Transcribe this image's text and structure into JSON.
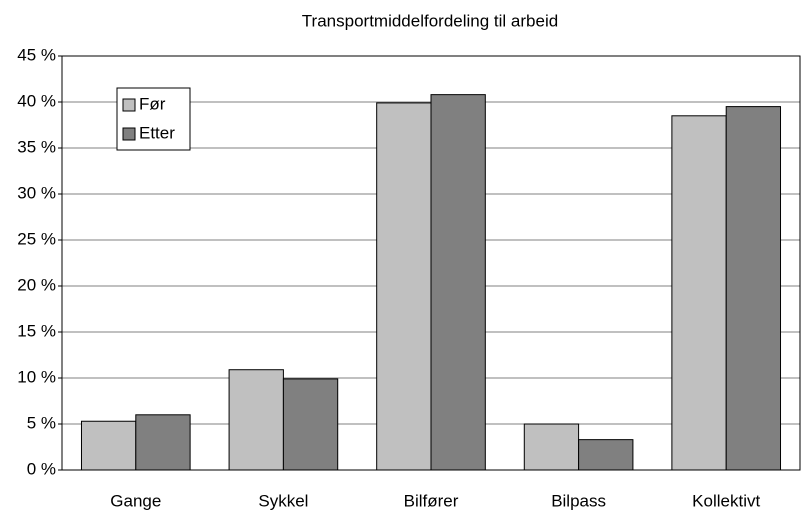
{
  "chart_data": {
    "type": "bar",
    "title": "Transportmiddelfordeling til arbeid",
    "categories": [
      "Gange",
      "Sykkel",
      "Bilfører",
      "Bilpass",
      "Kollektivt"
    ],
    "series": [
      {
        "name": "Før",
        "color": "#c0c0c0",
        "values": [
          5.3,
          10.9,
          39.9,
          5.0,
          38.5
        ]
      },
      {
        "name": "Etter",
        "color": "#808080",
        "values": [
          6.0,
          9.9,
          40.8,
          3.3,
          39.5
        ]
      }
    ],
    "ylim": [
      0,
      45
    ],
    "yticks": [
      {
        "value": 0,
        "label": "0 %"
      },
      {
        "value": 5,
        "label": "5 %"
      },
      {
        "value": 10,
        "label": "10 %"
      },
      {
        "value": 15,
        "label": "15 %"
      },
      {
        "value": 20,
        "label": "20 %"
      },
      {
        "value": 25,
        "label": "25 %"
      },
      {
        "value": 30,
        "label": "30 %"
      },
      {
        "value": 35,
        "label": "35 %"
      },
      {
        "value": 40,
        "label": "40 %"
      },
      {
        "value": 45,
        "label": "45 %"
      }
    ],
    "grid": true,
    "legend": "upper-left"
  }
}
